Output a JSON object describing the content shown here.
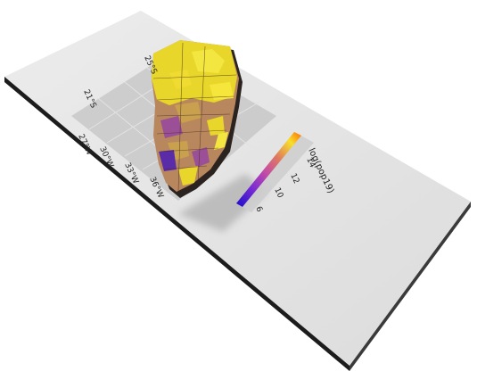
{
  "map": {
    "legend": {
      "title": "log(pop19)",
      "ticks": [
        "6",
        "10",
        "12",
        "14"
      ],
      "colors": [
        "#1a0dcc",
        "#7a2bd4",
        "#c24aa8",
        "#e07a5f",
        "#f2b33a",
        "#f7e02b",
        "#ff6a00"
      ]
    },
    "axis_labels": [
      "27°W",
      "30°W",
      "33°W",
      "36°W"
    ],
    "axis_labels_top": [
      "21°S",
      "25°S"
    ],
    "fill_colors": {
      "low": "#5b2ca8",
      "mid_low": "#9b4f96",
      "mid": "#b9875e",
      "mid_high": "#c9a04e",
      "high": "#e8d62a",
      "plate": "#e2e2e2",
      "plate_edge": "#222222",
      "shadow": "#bdbdbd"
    }
  }
}
